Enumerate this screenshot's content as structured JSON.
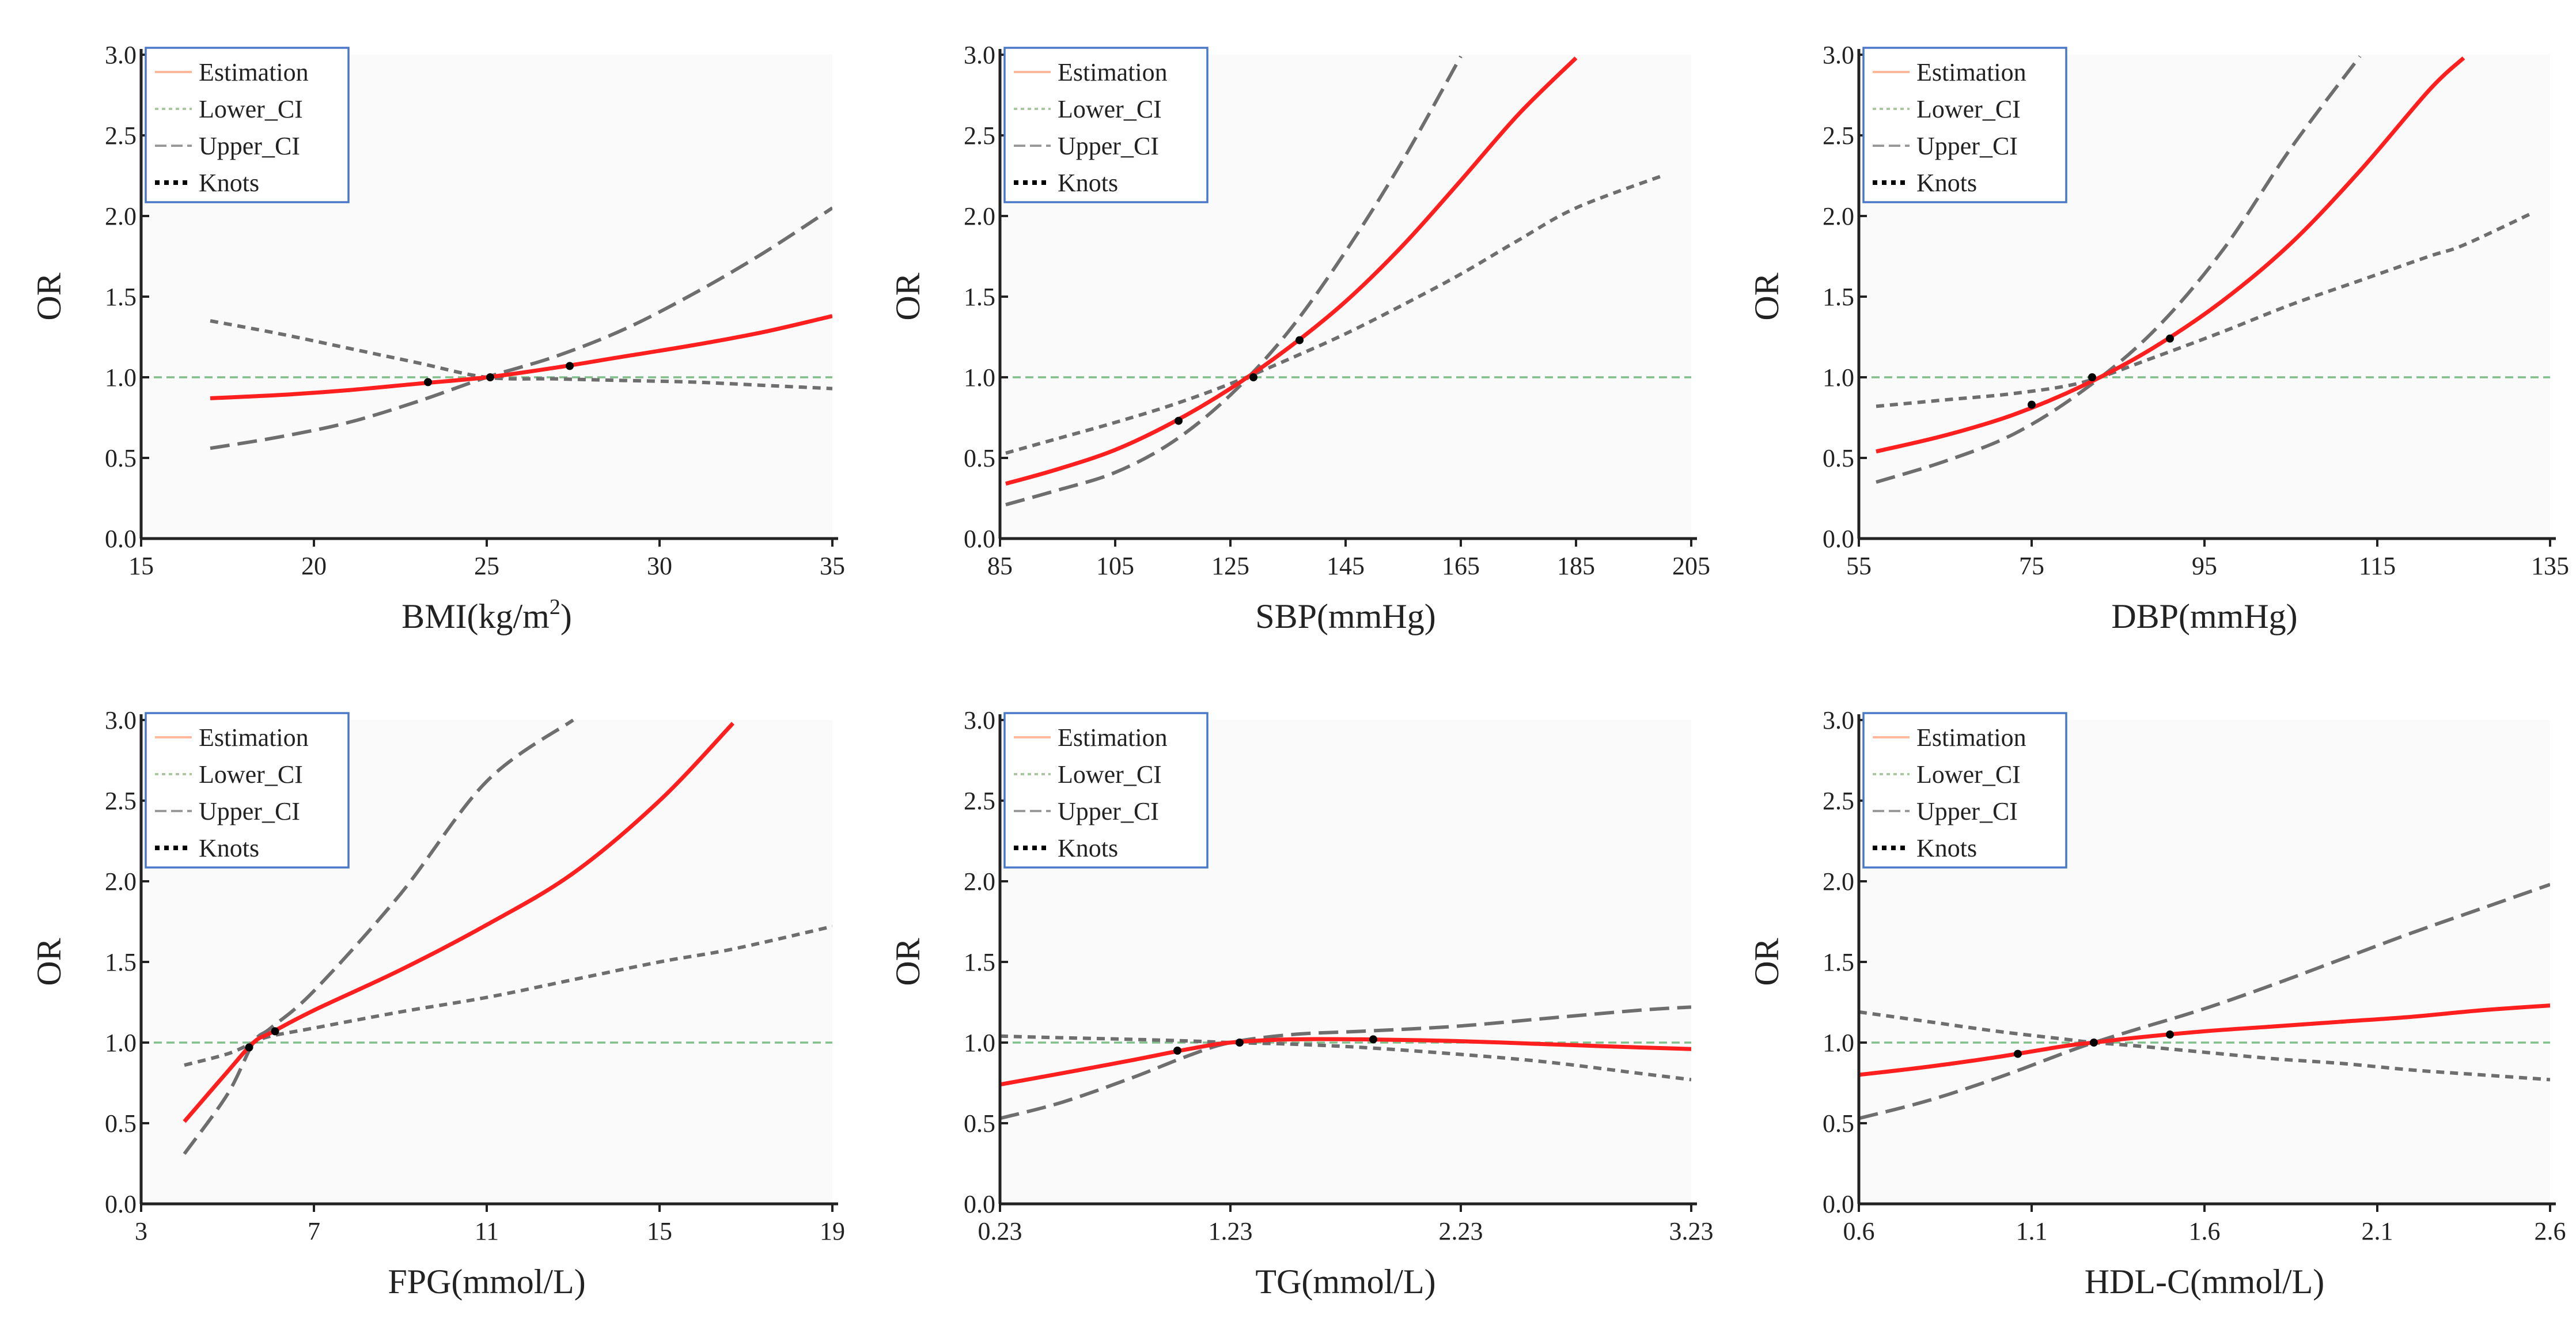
{
  "figure": {
    "legend_labels": {
      "estimation": "Estimation",
      "lower_ci": "Lower_CI",
      "upper_ci": "Upper_CI",
      "knots": "Knots"
    }
  },
  "colors": {
    "estimation": "#ff1f1f",
    "ci": "#6e6e6e",
    "reference": "#7fc08a",
    "legend_border": "#4a78c8"
  },
  "chart_data": [
    {
      "type": "line",
      "id": "bmi",
      "xlabel": "BMI(kg/m²)",
      "xlabel_base": "BMI(kg/m",
      "xlabel_sup": "2",
      "xlabel_tail": ")",
      "ylabel": "OR",
      "xlim": [
        15,
        35
      ],
      "ylim": [
        0,
        3
      ],
      "xticks": [
        15,
        20,
        25,
        30,
        35
      ],
      "xtick_labels": [
        "15",
        "20",
        "25",
        "30",
        "35"
      ],
      "yticks": [
        0,
        0.5,
        1,
        1.5,
        2,
        2.5,
        3
      ],
      "ytick_labels": [
        "0.0",
        "0.5",
        "1.0",
        "1.5",
        "2.0",
        "2.5",
        "3.0"
      ],
      "reference_y": 1.0,
      "x": [
        17,
        19,
        21,
        23,
        25,
        27,
        29,
        31,
        33,
        35
      ],
      "series": [
        {
          "name": "Estimation",
          "values": [
            0.87,
            0.89,
            0.92,
            0.96,
            1.0,
            1.06,
            1.13,
            1.2,
            1.28,
            1.38
          ]
        },
        {
          "name": "Lower_CI",
          "values": [
            1.35,
            1.27,
            1.18,
            1.09,
            1.0,
            0.99,
            0.98,
            0.97,
            0.95,
            0.93
          ]
        },
        {
          "name": "Upper_CI",
          "values": [
            0.56,
            0.63,
            0.72,
            0.85,
            1.0,
            1.13,
            1.3,
            1.52,
            1.77,
            2.05
          ]
        }
      ],
      "knots": [
        [
          23.3,
          0.97
        ],
        [
          25.1,
          1.0
        ],
        [
          27.4,
          1.07
        ]
      ]
    },
    {
      "type": "line",
      "id": "sbp",
      "xlabel": "SBP(mmHg)",
      "ylabel": "OR",
      "xlim": [
        85,
        205
      ],
      "ylim": [
        0,
        3
      ],
      "xticks": [
        85,
        105,
        125,
        145,
        165,
        185,
        205
      ],
      "xtick_labels": [
        "85",
        "105",
        "125",
        "145",
        "165",
        "185",
        "205"
      ],
      "yticks": [
        0,
        0.5,
        1,
        1.5,
        2,
        2.5,
        3
      ],
      "ytick_labels": [
        "0.0",
        "0.5",
        "1.0",
        "1.5",
        "2.0",
        "2.5",
        "3.0"
      ],
      "reference_y": 1.0,
      "x": [
        86,
        95,
        105,
        115,
        125,
        135,
        145,
        155,
        165,
        175,
        185,
        200
      ],
      "series": [
        {
          "name": "Estimation",
          "values": [
            0.34,
            0.43,
            0.55,
            0.72,
            0.93,
            1.18,
            1.47,
            1.82,
            2.22,
            2.63,
            2.98,
            null
          ]
        },
        {
          "name": "Lower_CI",
          "values": [
            0.53,
            0.62,
            0.72,
            0.83,
            0.96,
            1.11,
            1.27,
            1.45,
            1.64,
            1.85,
            2.05,
            2.25
          ]
        },
        {
          "name": "Upper_CI",
          "values": [
            0.21,
            0.3,
            0.41,
            0.6,
            0.89,
            1.28,
            1.78,
            2.35,
            2.99,
            null,
            null,
            null
          ]
        }
      ],
      "knots": [
        [
          116,
          0.73
        ],
        [
          129,
          1.0
        ],
        [
          137,
          1.23
        ]
      ]
    },
    {
      "type": "line",
      "id": "dbp",
      "xlabel": "DBP(mmHg)",
      "ylabel": "OR",
      "xlim": [
        55,
        135
      ],
      "ylim": [
        0,
        3
      ],
      "xticks": [
        55,
        75,
        95,
        115,
        135
      ],
      "xtick_labels": [
        "55",
        "75",
        "95",
        "115",
        "135"
      ],
      "yticks": [
        0,
        0.5,
        1,
        1.5,
        2,
        2.5,
        3
      ],
      "ytick_labels": [
        "0.0",
        "0.5",
        "1.0",
        "1.5",
        "2.0",
        "2.5",
        "3.0"
      ],
      "reference_y": 1.0,
      "x": [
        57,
        65,
        73,
        81,
        89,
        97,
        105,
        113,
        121,
        125,
        133
      ],
      "series": [
        {
          "name": "Estimation",
          "values": [
            0.54,
            0.64,
            0.77,
            0.95,
            1.18,
            1.47,
            1.83,
            2.28,
            2.78,
            2.98,
            null
          ]
        },
        {
          "name": "Lower_CI",
          "values": [
            0.82,
            0.86,
            0.9,
            0.97,
            1.12,
            1.28,
            1.45,
            1.6,
            1.75,
            1.82,
            2.02
          ]
        },
        {
          "name": "Upper_CI",
          "values": [
            0.35,
            0.48,
            0.65,
            0.92,
            1.28,
            1.78,
            2.42,
            2.99,
            null,
            null,
            null
          ]
        }
      ],
      "knots": [
        [
          75,
          0.83
        ],
        [
          82,
          1.0
        ],
        [
          91,
          1.24
        ]
      ]
    },
    {
      "type": "line",
      "id": "fpg",
      "xlabel": "FPG(mmol/L)",
      "ylabel": "OR",
      "xlim": [
        3,
        19
      ],
      "ylim": [
        0,
        3
      ],
      "xticks": [
        3,
        7,
        11,
        15,
        19
      ],
      "xtick_labels": [
        "3",
        "7",
        "11",
        "15",
        "19"
      ],
      "yticks": [
        0,
        0.5,
        1,
        1.5,
        2,
        2.5,
        3
      ],
      "ytick_labels": [
        "0.0",
        "0.5",
        "1.0",
        "1.5",
        "2.0",
        "2.5",
        "3.0"
      ],
      "reference_y": 1.0,
      "x": [
        4,
        5,
        5.6,
        6,
        7,
        9,
        11,
        13,
        15,
        16.7,
        19
      ],
      "series": [
        {
          "name": "Estimation",
          "values": [
            0.51,
            0.82,
            1.0,
            1.06,
            1.2,
            1.45,
            1.73,
            2.05,
            2.5,
            2.98,
            null
          ]
        },
        {
          "name": "Lower_CI",
          "values": [
            0.86,
            0.93,
            1.0,
            1.04,
            1.09,
            1.19,
            1.28,
            1.39,
            1.5,
            1.58,
            1.72
          ]
        },
        {
          "name": "Upper_CI",
          "values": [
            0.31,
            0.68,
            1.0,
            1.09,
            1.32,
            1.92,
            2.62,
            3.0,
            null,
            null,
            null
          ]
        }
      ],
      "knots": [
        [
          5.5,
          0.97
        ],
        [
          6.1,
          1.07
        ]
      ]
    },
    {
      "type": "line",
      "id": "tg",
      "xlabel": "TG(mmol/L)",
      "ylabel": "OR",
      "xlim": [
        0.23,
        3.23
      ],
      "ylim": [
        0,
        3
      ],
      "xticks": [
        0.23,
        1.23,
        2.23,
        3.23
      ],
      "xtick_labels": [
        "0.23",
        "1.23",
        "2.23",
        "3.23"
      ],
      "yticks": [
        0,
        0.5,
        1,
        1.5,
        2,
        2.5,
        3
      ],
      "ytick_labels": [
        "0.0",
        "0.5",
        "1.0",
        "1.5",
        "2.0",
        "2.5",
        "3.0"
      ],
      "reference_y": 1.0,
      "x": [
        0.23,
        0.5,
        0.8,
        1.05,
        1.23,
        1.5,
        1.8,
        2.2,
        2.6,
        3.0,
        3.23
      ],
      "series": [
        {
          "name": "Estimation",
          "values": [
            0.74,
            0.81,
            0.89,
            0.96,
            1.0,
            1.02,
            1.02,
            1.01,
            0.99,
            0.97,
            0.96
          ]
        },
        {
          "name": "Lower_CI",
          "values": [
            1.04,
            1.03,
            1.02,
            1.01,
            1.0,
            0.99,
            0.97,
            0.93,
            0.88,
            0.81,
            0.77
          ]
        },
        {
          "name": "Upper_CI",
          "values": [
            0.53,
            0.63,
            0.78,
            0.92,
            1.0,
            1.05,
            1.07,
            1.1,
            1.15,
            1.2,
            1.22
          ]
        }
      ],
      "knots": [
        [
          1.0,
          0.95
        ],
        [
          1.27,
          1.0
        ],
        [
          1.85,
          1.02
        ]
      ]
    },
    {
      "type": "line",
      "id": "hdl",
      "xlabel": "HDL-C(mmol/L)",
      "ylabel": "OR",
      "xlim": [
        0.6,
        2.6
      ],
      "ylim": [
        0,
        3
      ],
      "xticks": [
        0.6,
        1.1,
        1.6,
        2.1,
        2.6
      ],
      "xtick_labels": [
        "0.6",
        "1.1",
        "1.6",
        "2.1",
        "2.6"
      ],
      "yticks": [
        0,
        0.5,
        1,
        1.5,
        2,
        2.5,
        3
      ],
      "ytick_labels": [
        "0.0",
        "0.5",
        "1.0",
        "1.5",
        "2.0",
        "2.5",
        "3.0"
      ],
      "reference_y": 1.0,
      "x": [
        0.6,
        0.8,
        1.0,
        1.2,
        1.28,
        1.4,
        1.6,
        1.8,
        2.0,
        2.2,
        2.4,
        2.6
      ],
      "series": [
        {
          "name": "Estimation",
          "values": [
            0.8,
            0.85,
            0.91,
            0.98,
            1.0,
            1.03,
            1.07,
            1.1,
            1.13,
            1.16,
            1.2,
            1.23
          ]
        },
        {
          "name": "Lower_CI",
          "values": [
            1.19,
            1.13,
            1.07,
            1.02,
            1.0,
            0.98,
            0.94,
            0.9,
            0.87,
            0.83,
            0.8,
            0.77
          ]
        },
        {
          "name": "Upper_CI",
          "values": [
            0.53,
            0.64,
            0.78,
            0.94,
            1.0,
            1.08,
            1.21,
            1.36,
            1.52,
            1.68,
            1.83,
            1.98
          ]
        }
      ],
      "knots": [
        [
          1.06,
          0.93
        ],
        [
          1.28,
          1.0
        ],
        [
          1.5,
          1.05
        ]
      ]
    }
  ]
}
